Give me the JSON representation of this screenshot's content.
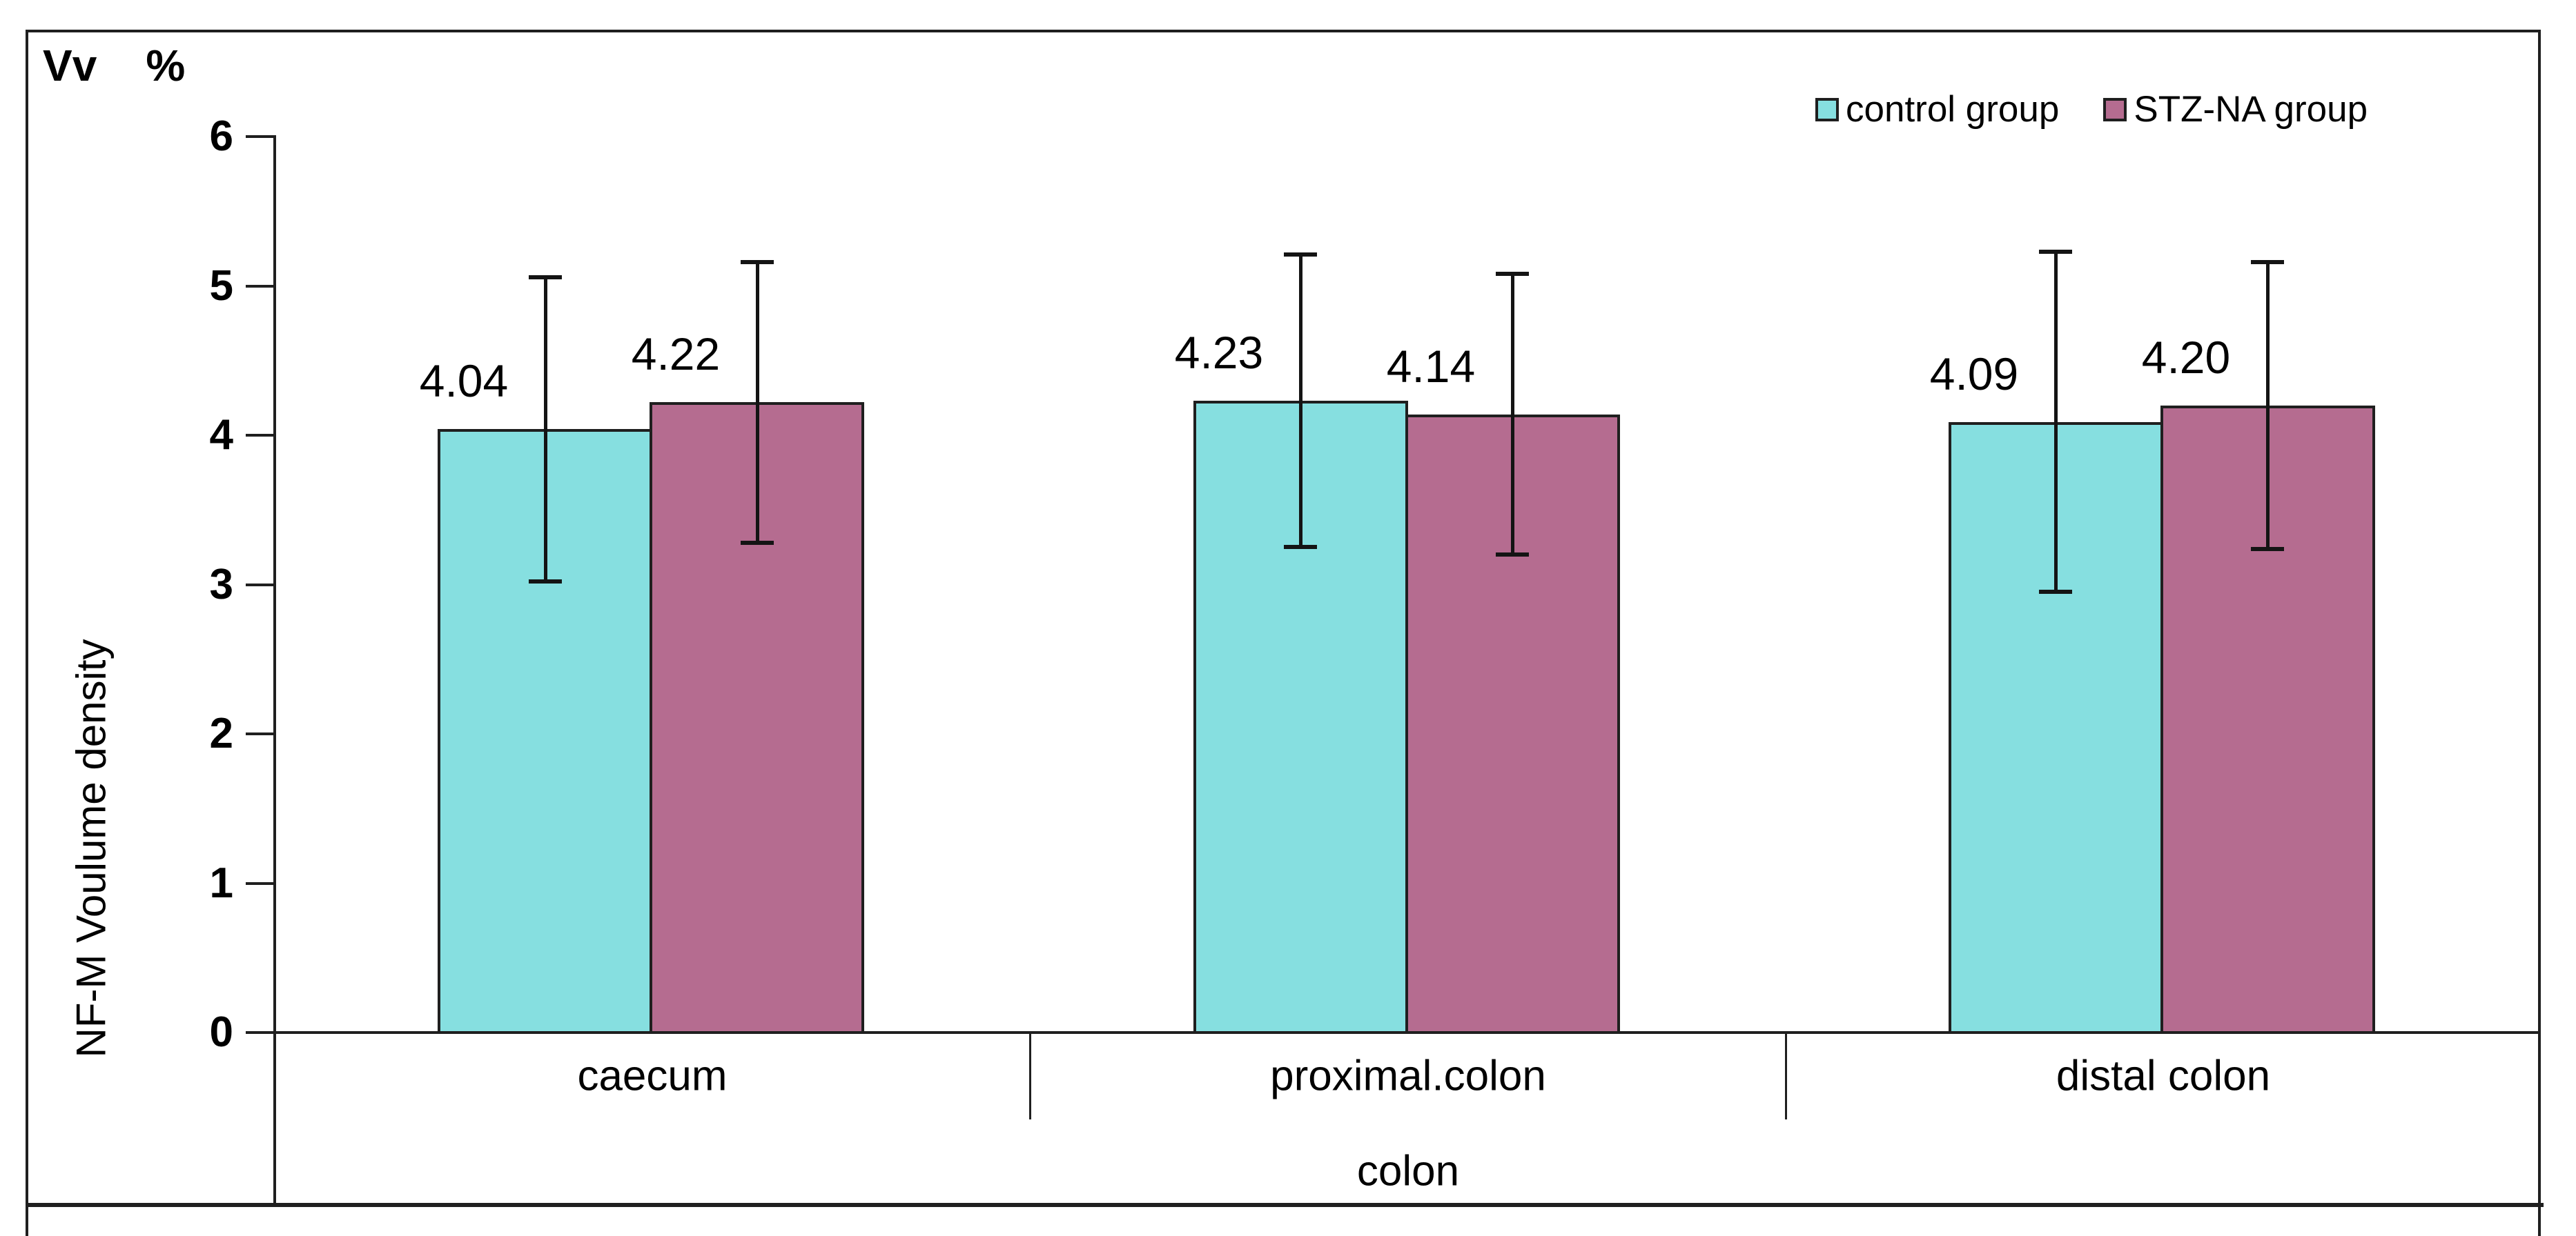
{
  "title": "Vv    %",
  "legend": [
    {
      "label": "control group",
      "color": "#86DFE0"
    },
    {
      "label": "STZ-NA group",
      "color": "#B56C90"
    }
  ],
  "y_axis": {
    "label": "NF-M Voulume density",
    "ticks": [
      "6",
      "5",
      "4",
      "3",
      "2",
      "1",
      "0"
    ]
  },
  "x_axis": {
    "label": "colon",
    "categories": [
      "caecum",
      "proximal.colon",
      "distal colon"
    ]
  },
  "chart_data": {
    "type": "bar",
    "title": "Vv %",
    "categories": [
      "caecum",
      "proximal.colon",
      "distal colon"
    ],
    "series": [
      {
        "name": "control group",
        "color": "#86DFE0",
        "border_color": "#1f1f1f",
        "values": [
          4.04,
          4.23,
          4.09
        ],
        "labels": [
          "4.04",
          "4.23",
          "4.09"
        ],
        "errors": [
          1.02,
          0.98,
          1.14
        ]
      },
      {
        "name": "STZ-NA group",
        "color": "#B56C90",
        "border_color": "#1f1f1f",
        "values": [
          4.22,
          4.14,
          4.2
        ],
        "labels": [
          "4.22",
          "4.14",
          "4.20"
        ],
        "errors": [
          0.94,
          0.94,
          0.96
        ]
      }
    ],
    "ylim": [
      0,
      6
    ],
    "ylabel": "NF-M Voulume density",
    "xlabel": "colon",
    "grid": false,
    "legend_position": "top-right",
    "error_bars": true
  }
}
